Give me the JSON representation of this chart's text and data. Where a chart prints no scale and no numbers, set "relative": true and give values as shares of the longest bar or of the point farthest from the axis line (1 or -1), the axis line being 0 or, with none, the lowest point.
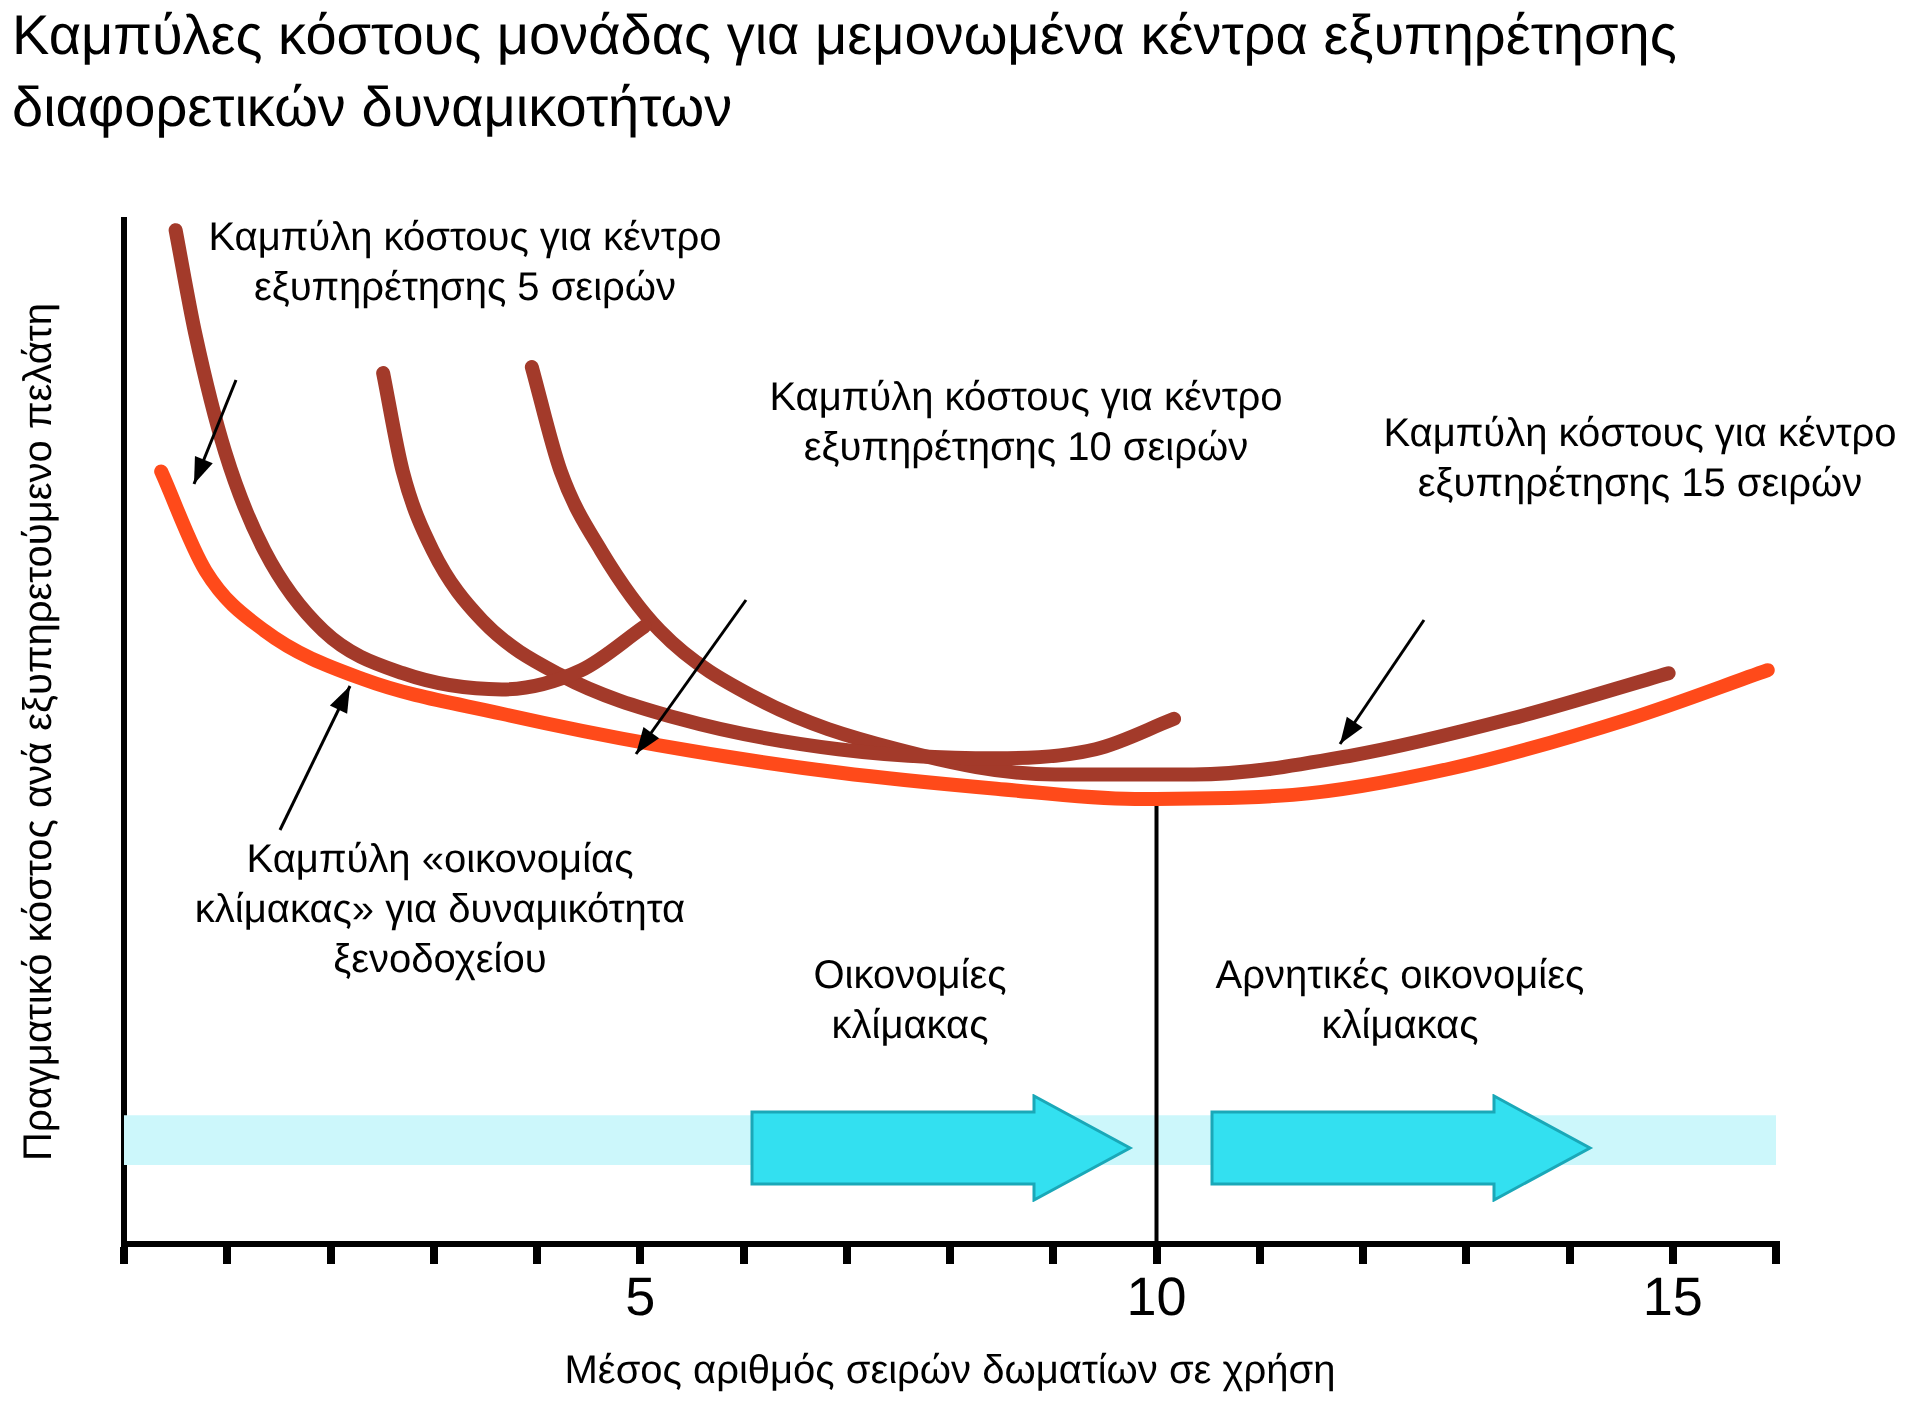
{
  "chart_data": {
    "type": "line",
    "title": "Καμπύλες κόστους μονάδας για μεμονωμένα κέντρα εξυπηρέτησης διαφορετικών δυναμικοτήτων",
    "xlabel": "Μέσος αριθμός σειρών δωματίων σε χρήση",
    "ylabel": "Πραγματικό κόστος ανά εξυπηρετούμενο πελάτη",
    "relative": true,
    "xlim": [
      0,
      16
    ],
    "xticks": [
      {
        "value": 0,
        "label": null
      },
      {
        "value": 1,
        "label": null
      },
      {
        "value": 2,
        "label": null
      },
      {
        "value": 3,
        "label": null
      },
      {
        "value": 4,
        "label": null
      },
      5,
      {
        "value": 6,
        "label": null
      },
      {
        "value": 7,
        "label": null
      },
      {
        "value": 8,
        "label": null
      },
      {
        "value": 9,
        "label": null
      },
      10,
      {
        "value": 11,
        "label": null
      },
      {
        "value": 12,
        "label": null
      },
      {
        "value": 13,
        "label": null
      },
      {
        "value": 14,
        "label": null
      },
      15,
      {
        "value": 16,
        "label": null
      }
    ],
    "series": [
      {
        "color": "#a33a2a",
        "x": [
          0.5,
          0.69,
          0.98,
          1.36,
          1.93,
          2.7,
          3.66,
          4.43,
          5.04
        ],
        "values": [
          1,
          0.898,
          0.781,
          0.684,
          0.605,
          0.563,
          0.547,
          0.566,
          0.609
        ]
      },
      {
        "color": "#a33a2a",
        "x": [
          2.51,
          2.7,
          2.99,
          3.47,
          4.23,
          5.38,
          6.92,
          8.45,
          9.41,
          10.17
        ],
        "values": [
          0.859,
          0.762,
          0.684,
          0.615,
          0.561,
          0.518,
          0.488,
          0.479,
          0.488,
          0.518
        ]
      },
      {
        "color": "#a33a2a",
        "x": [
          3.95,
          4.23,
          4.62,
          5.19,
          6.15,
          7.49,
          9.02,
          10.36,
          11.9,
          13.43,
          14.96
        ],
        "values": [
          0.865,
          0.762,
          0.684,
          0.605,
          0.537,
          0.488,
          0.463,
          0.463,
          0.482,
          0.518,
          0.563
        ]
      },
      {
        "color": "#ff4a1a",
        "x": [
          0.36,
          0.79,
          1.36,
          2.32,
          3.66,
          5.17,
          6.92,
          8.45,
          9.79,
          11.32,
          12.85,
          14.58,
          15.92
        ],
        "values": [
          0.762,
          0.664,
          0.605,
          0.557,
          0.523,
          0.492,
          0.465,
          0.449,
          0.439,
          0.443,
          0.469,
          0.518,
          0.566
        ]
      }
    ],
    "ref_lines": [
      {
        "axis": "x",
        "value": 10,
        "color": "#000000"
      }
    ],
    "bands": [
      {
        "axis": "y",
        "from": 0.078,
        "to": 0.127,
        "color": "#ccf7fb"
      }
    ],
    "annotations": [
      "Καμπύλη κόστους για κέντρο εξυπηρέτησης 5 σειρών",
      "Καμπύλη κόστους για κέντρο εξυπηρέτησης 10 σειρών",
      "Καμπύλη κόστους για κέντρο εξυπηρέτησης 15 σειρών",
      "Καμπύλη «οικονομίας κλίμακας» για δυναμικότητα ξενοδοχείου",
      "Οικονομίες κλίμακας",
      "Αρνητικές οικονομίες κλίμακας"
    ],
    "grid": false,
    "legend": false,
    "marker": "none",
    "line_style": "solid"
  }
}
